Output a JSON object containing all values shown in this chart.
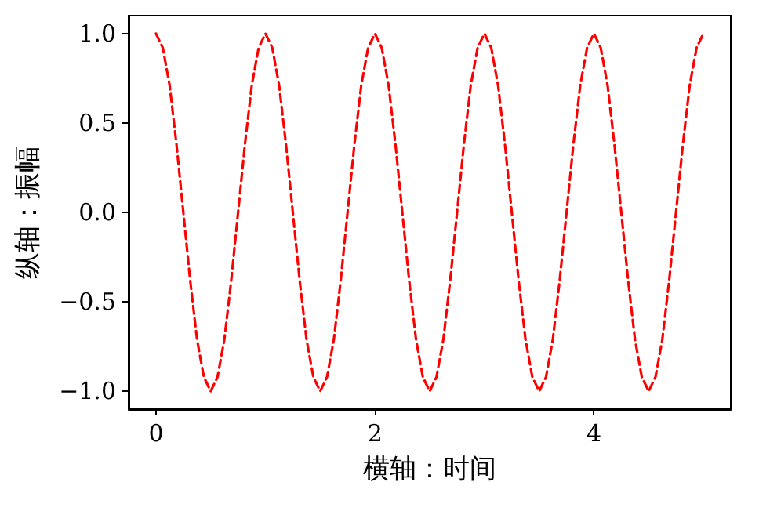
{
  "chart_data": {
    "type": "line",
    "xlabel": "横轴：时间",
    "ylabel": "纵轴：振幅",
    "x": [
      0,
      0.0625,
      0.125,
      0.1875,
      0.25,
      0.3125,
      0.375,
      0.4375,
      0.5,
      0.5625,
      0.625,
      0.6875,
      0.75,
      0.8125,
      0.875,
      0.9375,
      1,
      1.0625,
      1.125,
      1.1875,
      1.25,
      1.3125,
      1.375,
      1.4375,
      1.5,
      1.5625,
      1.625,
      1.6875,
      1.75,
      1.8125,
      1.875,
      1.9375,
      2,
      2.0625,
      2.125,
      2.1875,
      2.25,
      2.3125,
      2.375,
      2.4375,
      2.5,
      2.5625,
      2.625,
      2.6875,
      2.75,
      2.8125,
      2.875,
      2.9375,
      3,
      3.0625,
      3.125,
      3.1875,
      3.25,
      3.3125,
      3.375,
      3.4375,
      3.5,
      3.5625,
      3.625,
      3.6875,
      3.75,
      3.8125,
      3.875,
      3.9375,
      4,
      4.0625,
      4.125,
      4.1875,
      4.25,
      4.3125,
      4.375,
      4.4375,
      4.5,
      4.5625,
      4.625,
      4.6875,
      4.75,
      4.8125,
      4.875,
      4.9375,
      5
    ],
    "series": [
      {
        "color": "#ff0000",
        "values": [
          1,
          0.92,
          0.71,
          0.38,
          0,
          -0.38,
          -0.71,
          -0.92,
          -1,
          -0.92,
          -0.71,
          -0.38,
          0,
          0.38,
          0.71,
          0.92,
          1,
          0.92,
          0.71,
          0.38,
          0,
          -0.38,
          -0.71,
          -0.92,
          -1,
          -0.92,
          -0.71,
          -0.38,
          0,
          0.38,
          0.71,
          0.92,
          1,
          0.92,
          0.71,
          0.38,
          0,
          -0.38,
          -0.71,
          -0.92,
          -1,
          -0.92,
          -0.71,
          -0.38,
          0,
          0.38,
          0.71,
          0.92,
          1,
          0.92,
          0.71,
          0.38,
          0,
          -0.38,
          -0.71,
          -0.92,
          -1,
          -0.92,
          -0.71,
          -0.38,
          0,
          0.38,
          0.71,
          0.92,
          1,
          0.92,
          0.71,
          0.38,
          0,
          -0.38,
          -0.71,
          -0.92,
          -1,
          -0.92,
          -0.71,
          -0.38,
          0,
          0.38,
          0.71,
          0.92,
          1
        ]
      }
    ],
    "xlim": [
      -0.25,
      5.25
    ],
    "ylim": [
      -1.1,
      1.1
    ],
    "xticks": [
      0,
      2,
      4
    ],
    "yticks": [
      {
        "value": -1,
        "label": "−1.0"
      },
      {
        "value": -0.5,
        "label": "−0.5"
      },
      {
        "value": 0,
        "label": "0.0"
      },
      0.5,
      {
        "value": 1,
        "label": "1.0"
      }
    ],
    "line_style": "dashed",
    "marker": "none",
    "grid": false
  }
}
